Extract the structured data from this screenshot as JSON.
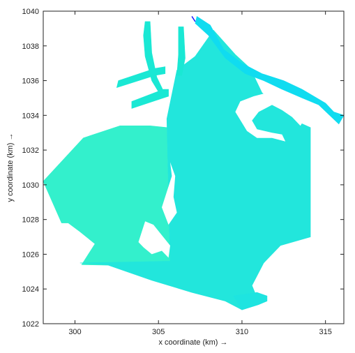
{
  "chart_data": {
    "type": "map",
    "title": "",
    "xlabel": "x coordinate (km) →",
    "ylabel": "y coordinate (km) →",
    "xlim": [
      298.1,
      316.1
    ],
    "ylim": [
      1022,
      1040
    ],
    "xticks": [
      300,
      305,
      310,
      315
    ],
    "yticks": [
      1022,
      1024,
      1026,
      1028,
      1030,
      1032,
      1034,
      1036,
      1038,
      1040
    ],
    "grid": false,
    "colors": {
      "west_region": "#33f0cc",
      "central_region": "#22e6dc",
      "north_strip": "#10dcf0",
      "harbour_channels": "#1ae8d4",
      "marker": "#1a1aff"
    },
    "regions": [
      {
        "name": "western-basin",
        "color": "#33f0cc",
        "points": [
          [
            298.1,
            1030.2
          ],
          [
            300.5,
            1032.7
          ],
          [
            302.7,
            1033.4
          ],
          [
            304.5,
            1033.4
          ],
          [
            305.5,
            1033.3
          ],
          [
            305.7,
            1025.3
          ],
          [
            300.4,
            1025.4
          ],
          [
            301.2,
            1026.6
          ],
          [
            300.3,
            1027.3
          ],
          [
            299.6,
            1027.8
          ],
          [
            299.2,
            1027.8
          ],
          [
            298.1,
            1030.2
          ]
        ]
      },
      {
        "name": "main-basin",
        "color": "#22e6dc",
        "points": [
          [
            305.5,
            1033.8
          ],
          [
            306.1,
            1036.6
          ],
          [
            307.2,
            1037.4
          ],
          [
            308.3,
            1038.9
          ],
          [
            309.6,
            1037.5
          ],
          [
            310.5,
            1036.7
          ],
          [
            311.2,
            1035.3
          ],
          [
            312.6,
            1034.2
          ],
          [
            313.4,
            1033.6
          ],
          [
            314.1,
            1033.3
          ],
          [
            314.1,
            1027.0
          ],
          [
            312.3,
            1026.5
          ],
          [
            311.3,
            1025.5
          ],
          [
            310.6,
            1024.2
          ],
          [
            310.9,
            1023.5
          ],
          [
            311.0,
            1023.1
          ],
          [
            310.0,
            1022.8
          ],
          [
            309.0,
            1023.3
          ],
          [
            307.0,
            1023.8
          ],
          [
            304.6,
            1024.5
          ],
          [
            301.9,
            1025.4
          ],
          [
            300.3,
            1025.5
          ],
          [
            305.7,
            1025.6
          ],
          [
            305.5,
            1033.8
          ]
        ]
      },
      {
        "name": "south-tip",
        "color": "#1ee4e0",
        "points": [
          [
            309.5,
            1023.6
          ],
          [
            310.9,
            1023.8
          ],
          [
            311.5,
            1023.6
          ],
          [
            311.5,
            1023.3
          ],
          [
            311.0,
            1023.1
          ],
          [
            310.0,
            1022.8
          ],
          [
            309.5,
            1023.6
          ]
        ]
      },
      {
        "name": "northern-coastal-strip",
        "color": "#10dcf0",
        "points": [
          [
            307.3,
            1039.7
          ],
          [
            308.1,
            1039.2
          ],
          [
            308.9,
            1037.8
          ],
          [
            310.0,
            1037.0
          ],
          [
            311.2,
            1036.4
          ],
          [
            312.5,
            1036.0
          ],
          [
            313.6,
            1035.5
          ],
          [
            315.0,
            1034.7
          ],
          [
            315.5,
            1034.2
          ],
          [
            316.1,
            1034.0
          ],
          [
            315.8,
            1033.5
          ],
          [
            314.6,
            1034.6
          ],
          [
            313.6,
            1035.0
          ],
          [
            312.4,
            1035.5
          ],
          [
            311.3,
            1036.0
          ],
          [
            310.2,
            1036.4
          ],
          [
            309.0,
            1037.3
          ],
          [
            308.0,
            1038.6
          ],
          [
            307.2,
            1039.3
          ],
          [
            307.3,
            1039.7
          ]
        ]
      },
      {
        "name": "harbour-channel-north",
        "color": "#1ae8d4",
        "points": [
          [
            304.1,
            1038.6
          ],
          [
            304.2,
            1039.4
          ],
          [
            304.5,
            1039.4
          ],
          [
            304.6,
            1037.6
          ],
          [
            304.9,
            1036.2
          ],
          [
            305.3,
            1035.4
          ],
          [
            305.1,
            1035.2
          ],
          [
            304.6,
            1036.0
          ],
          [
            304.2,
            1037.4
          ],
          [
            304.1,
            1038.6
          ]
        ]
      },
      {
        "name": "harbour-channel-east",
        "color": "#1ae8d4",
        "points": [
          [
            306.2,
            1039.1
          ],
          [
            306.5,
            1039.1
          ],
          [
            306.6,
            1037.3
          ],
          [
            306.4,
            1036.3
          ],
          [
            306.1,
            1036.3
          ],
          [
            306.2,
            1037.5
          ],
          [
            306.2,
            1039.1
          ]
        ]
      },
      {
        "name": "harbour-spur-west",
        "color": "#1ae8d4",
        "points": [
          [
            302.5,
            1035.6
          ],
          [
            302.6,
            1036.0
          ],
          [
            304.8,
            1036.7
          ],
          [
            305.4,
            1036.8
          ],
          [
            305.4,
            1036.4
          ],
          [
            304.8,
            1036.3
          ],
          [
            302.5,
            1035.6
          ]
        ]
      },
      {
        "name": "harbour-spur-mid",
        "color": "#1ae8d4",
        "points": [
          [
            303.4,
            1034.4
          ],
          [
            303.4,
            1034.8
          ],
          [
            305.3,
            1035.5
          ],
          [
            305.6,
            1035.5
          ],
          [
            305.6,
            1035.1
          ],
          [
            305.3,
            1035.0
          ],
          [
            303.4,
            1034.4
          ]
        ]
      }
    ],
    "holes": [
      {
        "name": "hole-inner-harbour",
        "points": [
          [
            309.6,
            1034.2
          ],
          [
            309.9,
            1034.8
          ],
          [
            310.7,
            1035.1
          ],
          [
            311.5,
            1035.3
          ],
          [
            312.4,
            1035.0
          ],
          [
            313.2,
            1034.6
          ],
          [
            313.9,
            1034.0
          ],
          [
            313.5,
            1033.4
          ],
          [
            313.0,
            1033.9
          ],
          [
            312.4,
            1034.3
          ],
          [
            311.8,
            1034.6
          ],
          [
            311.0,
            1034.2
          ],
          [
            310.6,
            1033.7
          ],
          [
            310.9,
            1033.2
          ],
          [
            311.8,
            1033.0
          ],
          [
            312.4,
            1032.9
          ],
          [
            312.6,
            1032.5
          ],
          [
            311.8,
            1032.7
          ],
          [
            310.9,
            1032.7
          ],
          [
            310.3,
            1033.1
          ],
          [
            309.6,
            1034.2
          ]
        ]
      },
      {
        "name": "hole-islands-west",
        "points": [
          [
            305.2,
            1028.7
          ],
          [
            305.5,
            1029.6
          ],
          [
            305.8,
            1030.5
          ],
          [
            305.7,
            1031.3
          ],
          [
            306.0,
            1030.5
          ],
          [
            305.9,
            1029.3
          ],
          [
            306.1,
            1028.4
          ],
          [
            305.6,
            1027.7
          ],
          [
            305.2,
            1028.7
          ]
        ]
      },
      {
        "name": "hole-islands-south",
        "points": [
          [
            303.8,
            1026.7
          ],
          [
            304.2,
            1027.9
          ],
          [
            304.7,
            1027.7
          ],
          [
            305.2,
            1027.1
          ],
          [
            305.7,
            1026.5
          ],
          [
            305.6,
            1025.8
          ],
          [
            305.2,
            1026.2
          ],
          [
            304.6,
            1026.0
          ],
          [
            304.1,
            1026.4
          ],
          [
            303.8,
            1026.7
          ]
        ]
      }
    ],
    "marker_label": ""
  }
}
